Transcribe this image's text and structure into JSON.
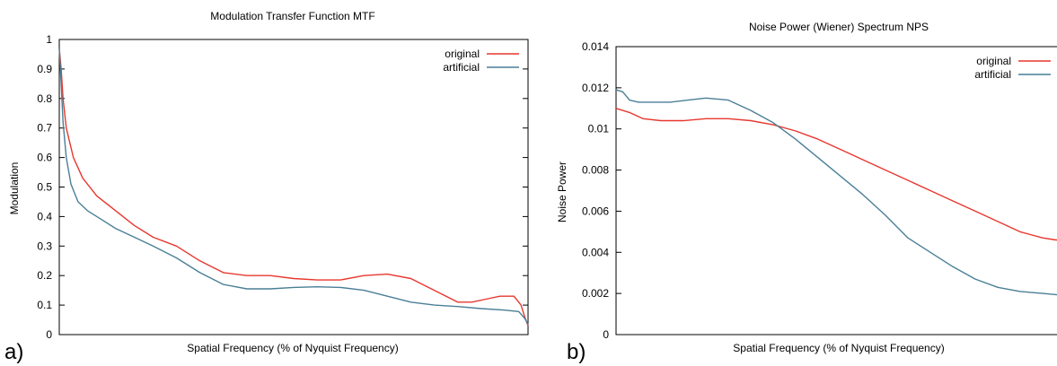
{
  "figure": {
    "panel_labels": [
      "a)",
      "b)"
    ],
    "colors": {
      "original": "#e8372f",
      "artificial": "#4a7f96"
    }
  },
  "chart_data": [
    {
      "type": "line",
      "title": "Modulation Transfer Function MTF",
      "xlabel": "Spatial Frequency (% of Nyquist Frequency)",
      "ylabel": "Modulation",
      "xlim": [
        0,
        100
      ],
      "ylim": [
        0,
        1
      ],
      "yticks": [
        "0",
        "0.1",
        "0.2",
        "0.3",
        "0.4",
        "0.5",
        "0.6",
        "0.7",
        "0.8",
        "0.9",
        "1"
      ],
      "ytick_values": [
        0,
        0.1,
        0.2,
        0.3,
        0.4,
        0.5,
        0.6,
        0.7,
        0.8,
        0.9,
        1
      ],
      "xticks": [],
      "grid": false,
      "legend": "top-right",
      "series": [
        {
          "name": "original",
          "color": "#e8372f",
          "x": [
            0,
            0.4,
            0.8,
            1.5,
            3,
            5,
            8,
            12,
            16,
            20,
            25,
            30,
            35,
            40,
            45,
            50,
            55,
            60,
            65,
            70,
            75,
            80,
            85,
            88,
            91,
            94,
            97,
            98.5,
            99.3,
            100
          ],
          "y": [
            0.97,
            0.9,
            0.8,
            0.7,
            0.6,
            0.53,
            0.47,
            0.42,
            0.37,
            0.33,
            0.3,
            0.25,
            0.21,
            0.2,
            0.2,
            0.19,
            0.185,
            0.185,
            0.2,
            0.205,
            0.19,
            0.15,
            0.11,
            0.11,
            0.12,
            0.13,
            0.13,
            0.1,
            0.06,
            0.03
          ]
        },
        {
          "name": "artificial",
          "color": "#4a7f96",
          "x": [
            0,
            0.4,
            0.8,
            1.5,
            2.5,
            4,
            6,
            9,
            12,
            16,
            20,
            25,
            30,
            35,
            40,
            45,
            50,
            55,
            60,
            65,
            70,
            75,
            80,
            85,
            90,
            95,
            98,
            99.3,
            100
          ],
          "y": [
            0.97,
            0.85,
            0.72,
            0.6,
            0.51,
            0.45,
            0.42,
            0.39,
            0.36,
            0.33,
            0.3,
            0.26,
            0.21,
            0.17,
            0.155,
            0.155,
            0.16,
            0.162,
            0.16,
            0.15,
            0.13,
            0.11,
            0.1,
            0.095,
            0.088,
            0.083,
            0.078,
            0.055,
            0.035
          ]
        }
      ]
    },
    {
      "type": "line",
      "title": "Noise Power (Wiener) Spectrum NPS",
      "xlabel": "Spatial Frequency (% of Nyquist Frequency)",
      "ylabel": "Noise Power",
      "xlim": [
        0,
        100
      ],
      "ylim": [
        0,
        0.014
      ],
      "yticks": [
        "0",
        "0.002",
        "0.004",
        "0.006",
        "0.008",
        "0.01",
        "0.012",
        "0.014"
      ],
      "ytick_values": [
        0,
        0.002,
        0.004,
        0.006,
        0.008,
        0.01,
        0.012,
        0.014
      ],
      "xticks": [],
      "grid": false,
      "legend": "top-right",
      "series": [
        {
          "name": "original",
          "color": "#e8372f",
          "x": [
            0,
            3,
            6,
            10,
            15,
            20,
            25,
            30,
            35,
            40,
            45,
            50,
            55,
            60,
            65,
            70,
            75,
            80,
            85,
            90,
            95,
            98,
            100
          ],
          "y": [
            0.011,
            0.0108,
            0.0105,
            0.0104,
            0.0104,
            0.0105,
            0.0105,
            0.0104,
            0.0102,
            0.0099,
            0.0095,
            0.009,
            0.0085,
            0.008,
            0.0075,
            0.007,
            0.0065,
            0.006,
            0.0055,
            0.005,
            0.0047,
            0.0046,
            0.0046
          ]
        },
        {
          "name": "artificial",
          "color": "#4a7f96",
          "x": [
            0,
            1.5,
            3,
            5,
            8,
            12,
            16,
            20,
            25,
            30,
            35,
            40,
            45,
            50,
            55,
            60,
            65,
            70,
            75,
            80,
            85,
            90,
            95,
            100
          ],
          "y": [
            0.0119,
            0.0118,
            0.0114,
            0.0113,
            0.0113,
            0.0113,
            0.0114,
            0.0115,
            0.0114,
            0.0109,
            0.0103,
            0.0095,
            0.0086,
            0.0077,
            0.0068,
            0.0058,
            0.0047,
            0.004,
            0.0033,
            0.0027,
            0.0023,
            0.0021,
            0.002,
            0.0019
          ]
        }
      ]
    }
  ]
}
